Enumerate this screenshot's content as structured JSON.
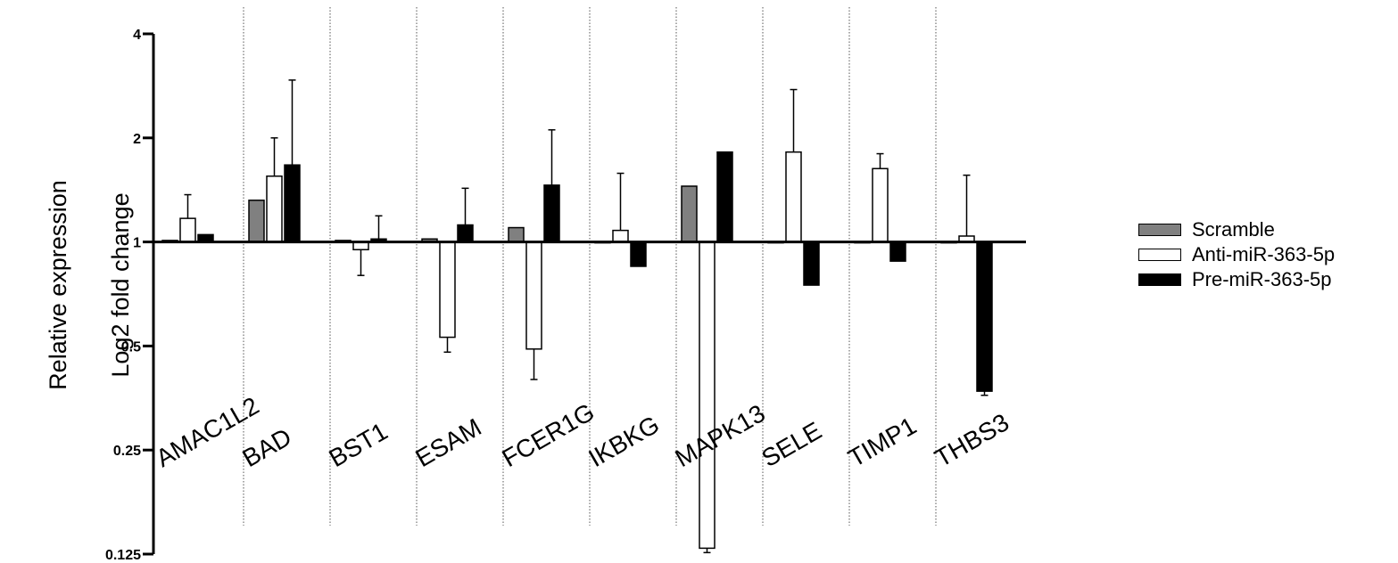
{
  "chart_data": {
    "type": "bar",
    "ylabel_lines": [
      "Relative expression",
      "Log2 fold change"
    ],
    "yscale": "log2",
    "ylim": [
      0.125,
      4
    ],
    "yticks": [
      {
        "value": 0.125,
        "label": "0.125"
      },
      {
        "value": 0.25,
        "label": "0.25"
      },
      {
        "value": 0.5,
        "label": "0.5"
      },
      {
        "value": 1,
        "label": "1"
      },
      {
        "value": 2,
        "label": "2"
      },
      {
        "value": 4,
        "label": "4"
      }
    ],
    "categories": [
      "AMAC1L2",
      "BAD",
      "BST1",
      "ESAM",
      "FCER1G",
      "IKBKG",
      "MAPK13",
      "SELE",
      "TIMP1",
      "THBS3"
    ],
    "series": [
      {
        "name": "Scramble",
        "color": "#808080",
        "values": [
          1.01,
          1.32,
          1.01,
          1.02,
          1.1,
          1.0,
          1.45,
          1.0,
          1.0,
          1.0
        ],
        "errors": [
          0.0,
          0.0,
          0.0,
          0.0,
          0.0,
          0.0,
          0.0,
          0.0,
          0.0,
          0.0
        ]
      },
      {
        "name": "Anti-miR-363-5p",
        "color": "#ffffff",
        "values": [
          1.17,
          1.55,
          0.95,
          0.53,
          0.49,
          1.08,
          0.13,
          1.82,
          1.63,
          1.04
        ],
        "errors": [
          0.2,
          0.45,
          0.15,
          0.05,
          0.09,
          0.5,
          0.008,
          0.94,
          0.17,
          0.52
        ]
      },
      {
        "name": "Pre-miR-363-5p",
        "color": "#000000",
        "values": [
          1.05,
          1.67,
          1.02,
          1.12,
          1.46,
          0.85,
          1.82,
          0.75,
          0.88,
          0.37
        ],
        "errors": [
          0.0,
          1.27,
          0.17,
          0.31,
          0.65,
          0.0,
          0.0,
          0.0,
          0.0,
          0.01
        ]
      }
    ],
    "legend_position": "right",
    "grid": false
  }
}
